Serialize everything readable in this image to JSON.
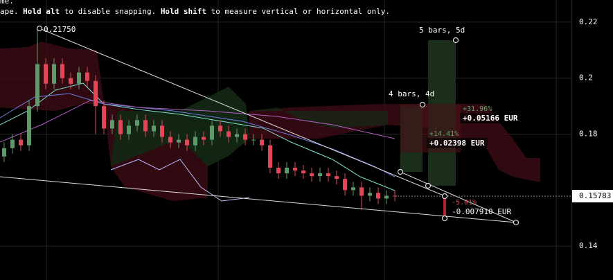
{
  "chart_data": {
    "type": "candlestick",
    "hint": {
      "first": "me.",
      "parts": [
        "ape. ",
        "Hold alt",
        " to disable snapping. ",
        "Hold shift",
        " to measure vertical or horizontal only."
      ]
    },
    "open": [
      0.172,
      0.175,
      0.178,
      0.176,
      0.19,
      0.205,
      0.198,
      0.205,
      0.2,
      0.198,
      0.202,
      0.199,
      0.19,
      0.182,
      0.185,
      0.18,
      0.183,
      0.185,
      0.181,
      0.183,
      0.179,
      0.177,
      0.178,
      0.176,
      0.179,
      0.178,
      0.183,
      0.181,
      0.179,
      0.18,
      0.178,
      0.178,
      0.176,
      0.168,
      0.166,
      0.168,
      0.167,
      0.166,
      0.165,
      0.166,
      0.165,
      0.164,
      0.16,
      0.161,
      0.158,
      0.159,
      0.157,
      0.158
    ],
    "high": [
      0.177,
      0.18,
      0.18,
      0.192,
      0.2175,
      0.207,
      0.207,
      0.207,
      0.202,
      0.204,
      0.204,
      0.201,
      0.192,
      0.187,
      0.187,
      0.185,
      0.187,
      0.187,
      0.185,
      0.185,
      0.181,
      0.18,
      0.18,
      0.181,
      0.181,
      0.185,
      0.185,
      0.183,
      0.182,
      0.182,
      0.18,
      0.18,
      0.178,
      0.17,
      0.17,
      0.17,
      0.169,
      0.168,
      0.168,
      0.168,
      0.167,
      0.166,
      0.163,
      0.163,
      0.161,
      0.161,
      0.16,
      0.16
    ],
    "low": [
      0.17,
      0.173,
      0.174,
      0.174,
      0.188,
      0.196,
      0.196,
      0.198,
      0.196,
      0.196,
      0.197,
      0.18,
      0.18,
      0.18,
      0.178,
      0.178,
      0.181,
      0.179,
      0.179,
      0.177,
      0.175,
      0.175,
      0.174,
      0.174,
      0.176,
      0.176,
      0.179,
      0.177,
      0.177,
      0.176,
      0.176,
      0.174,
      0.166,
      0.164,
      0.164,
      0.165,
      0.164,
      0.163,
      0.163,
      0.163,
      0.162,
      0.158,
      0.158,
      0.153,
      0.156,
      0.155,
      0.155,
      0.156
    ],
    "close": [
      0.175,
      0.178,
      0.176,
      0.19,
      0.205,
      0.198,
      0.205,
      0.2,
      0.198,
      0.202,
      0.199,
      0.19,
      0.182,
      0.185,
      0.18,
      0.183,
      0.185,
      0.181,
      0.183,
      0.179,
      0.177,
      0.178,
      0.176,
      0.179,
      0.178,
      0.183,
      0.181,
      0.179,
      0.18,
      0.178,
      0.178,
      0.176,
      0.168,
      0.166,
      0.168,
      0.167,
      0.166,
      0.165,
      0.166,
      0.165,
      0.164,
      0.16,
      0.161,
      0.158,
      0.159,
      0.157,
      0.158,
      0.15783
    ],
    "up_color": "#5e9a6c",
    "down_color": "#e0485a",
    "ylim": [
      0.1279,
      0.2279
    ],
    "yticks": [
      0.22,
      0.2,
      0.18,
      0.14
    ],
    "last_price": "0.15783",
    "annotations": {
      "peak": "0.21750",
      "range1": "5 bars, 5d",
      "range2": "4 bars, 4d",
      "pct1": "+31.96%",
      "eur1": "+0.05166 EUR",
      "pct2": "+14.41%",
      "eur2": "+0.02398 EUR",
      "pct3": "-5.01%",
      "eur3": "-0.007910 EUR"
    }
  }
}
